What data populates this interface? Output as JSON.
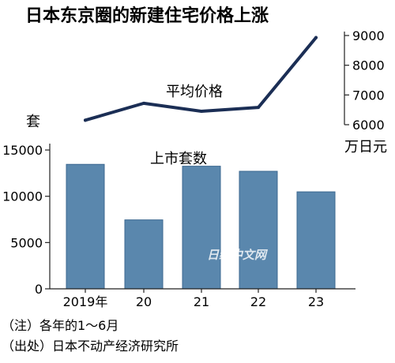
{
  "chart_data": [
    {
      "type": "line",
      "title": "日本东京圈的新建住宅价格上涨",
      "series": [
        {
          "name": "平均价格",
          "values": [
            6150,
            6720,
            6450,
            6580,
            8930
          ]
        }
      ],
      "categories": [
        "2019年",
        "20",
        "21",
        "22",
        "23"
      ],
      "y_ticks": [
        "6000",
        "7000",
        "8000",
        "9000"
      ],
      "ylim": [
        6000,
        9000
      ],
      "axis_position": "right",
      "unit_label": "万日元"
    },
    {
      "type": "bar",
      "series": [
        {
          "name": "上市套数",
          "values": [
            13450,
            7450,
            13250,
            12700,
            10480
          ]
        }
      ],
      "categories": [
        "2019年",
        "20",
        "21",
        "22",
        "23"
      ],
      "y_ticks": [
        "0",
        "5000",
        "10000",
        "15000"
      ],
      "ylim": [
        0,
        16200
      ],
      "unit_label": "套",
      "bar_color": "#5a87ad"
    }
  ],
  "notes": [
    "（注）各年的1～6月",
    "（出处）日本不动产经济研究所"
  ],
  "watermark": "日经中文网",
  "colors": {
    "line": "#1b2e55",
    "bar": "#5a87ad",
    "axis": "#222222"
  }
}
